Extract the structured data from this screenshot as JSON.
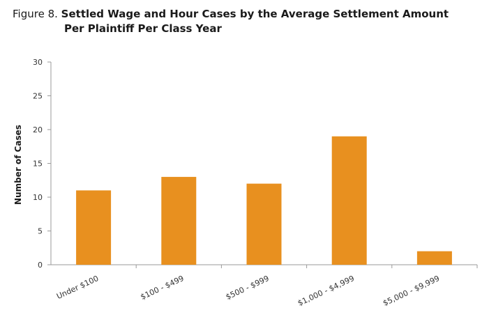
{
  "figure": {
    "label": "Figure 8.",
    "title_line1": "Settled Wage and Hour Cases by the Average Settlement Amount",
    "title_line2": "Per Plaintiff Per Class Year"
  },
  "chart_data": {
    "type": "bar",
    "title": "Settled Wage and Hour Cases by the Average Settlement Amount Per Plaintiff Per Class Year",
    "xlabel": "",
    "ylabel": "Number of Cases",
    "categories": [
      "Under $100",
      "$100 - $499",
      "$500 - $999",
      "$1,000 - $4,999",
      "$5,000 - $9,999"
    ],
    "values": [
      11,
      13,
      12,
      19,
      2
    ],
    "ylim": [
      0,
      30
    ],
    "yticks": [
      0,
      5,
      10,
      15,
      20,
      25,
      30
    ],
    "grid": false,
    "bar_color": "#E8901F"
  }
}
